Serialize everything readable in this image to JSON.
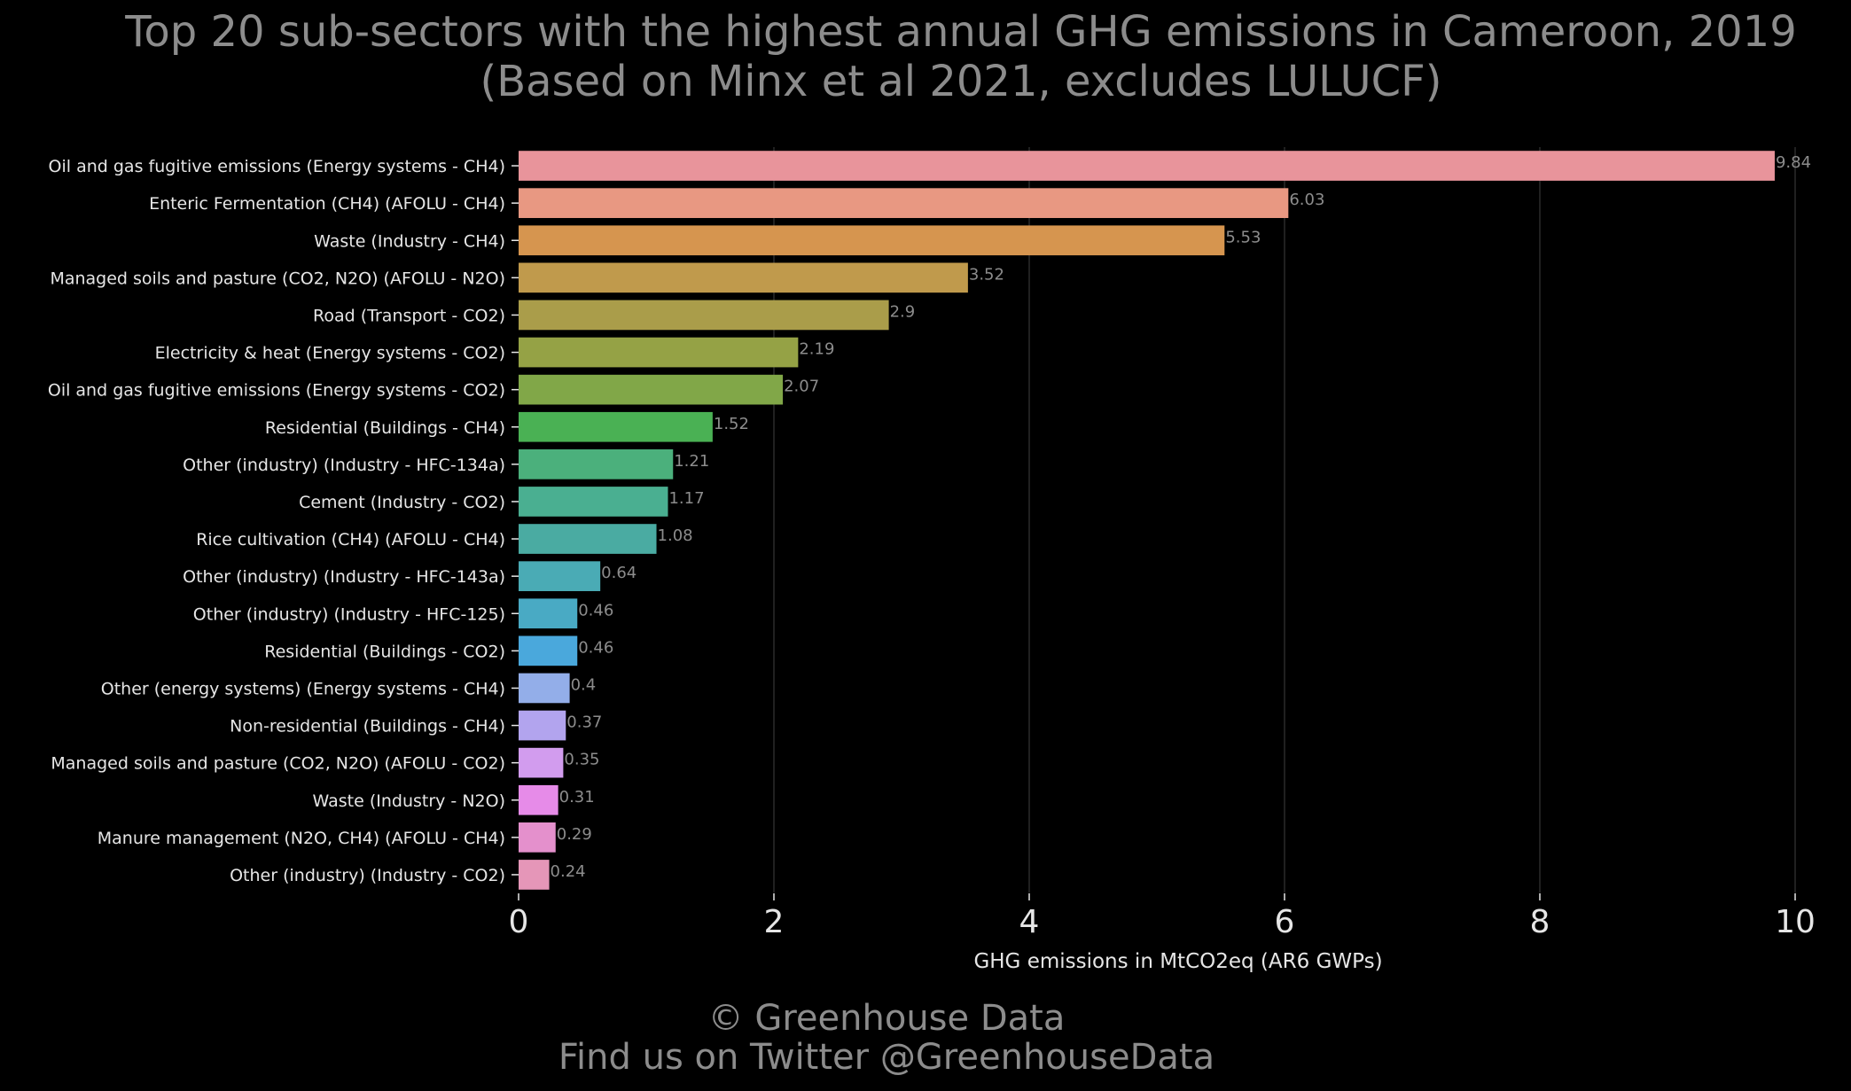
{
  "chart_data": {
    "type": "bar",
    "orientation": "horizontal",
    "title": "Top 20 sub-sectors with the highest annual GHG emissions in Cameroon, 2019",
    "subtitle": "(Based on Minx et al 2021, excludes LULUCF)",
    "xlabel": "GHG emissions in MtCO2eq (AR6 GWPs)",
    "ylabel": "",
    "xlim": [
      0,
      10
    ],
    "xticks": [
      0,
      2,
      4,
      6,
      8,
      10
    ],
    "grid": "vertical",
    "categories": [
      "Oil and gas fugitive emissions (Energy systems - CH4)",
      "Enteric Fermentation (CH4) (AFOLU - CH4)",
      "Waste (Industry - CH4)",
      "Managed soils and pasture (CO2, N2O) (AFOLU - N2O)",
      "Road (Transport - CO2)",
      "Electricity & heat (Energy systems - CO2)",
      "Oil and gas fugitive emissions (Energy systems - CO2)",
      "Residential (Buildings - CH4)",
      "Other (industry) (Industry - HFC-134a)",
      "Cement (Industry - CO2)",
      "Rice cultivation (CH4) (AFOLU - CH4)",
      "Other (industry) (Industry - HFC-143a)",
      "Other (industry) (Industry - HFC-125)",
      "Residential (Buildings - CO2)",
      "Other (energy systems) (Energy systems - CH4)",
      "Non-residential (Buildings - CH4)",
      "Managed soils and pasture (CO2, N2O) (AFOLU - CO2)",
      "Waste (Industry - N2O)",
      "Manure management (N2O, CH4) (AFOLU - CH4)",
      "Other (industry) (Industry - CO2)"
    ],
    "values": [
      9.84,
      6.03,
      5.53,
      3.52,
      2.9,
      2.19,
      2.07,
      1.52,
      1.21,
      1.17,
      1.08,
      0.64,
      0.46,
      0.46,
      0.4,
      0.37,
      0.35,
      0.31,
      0.29,
      0.24
    ],
    "value_labels": [
      "9.84",
      "6.03",
      "5.53",
      "3.52",
      "2.9",
      "2.19",
      "2.07",
      "1.52",
      "1.21",
      "1.17",
      "1.08",
      "0.64",
      "0.46",
      "0.46",
      "0.4",
      "0.37",
      "0.35",
      "0.31",
      "0.29",
      "0.24"
    ],
    "colors": [
      "#e8949b",
      "#e89882",
      "#d6954f",
      "#c09a4c",
      "#aa9d4a",
      "#95a245",
      "#81a748",
      "#4ab154",
      "#4bb07c",
      "#4aaf91",
      "#4aaba2",
      "#4aabb5",
      "#49aac4",
      "#4aa8dc",
      "#93aee9",
      "#b2a4ee",
      "#d29cee",
      "#e68be8",
      "#e490cc",
      "#e596b8"
    ]
  },
  "footer": {
    "copyright": "© Greenhouse Data",
    "twitter": "Find us on Twitter @GreenhouseData"
  }
}
